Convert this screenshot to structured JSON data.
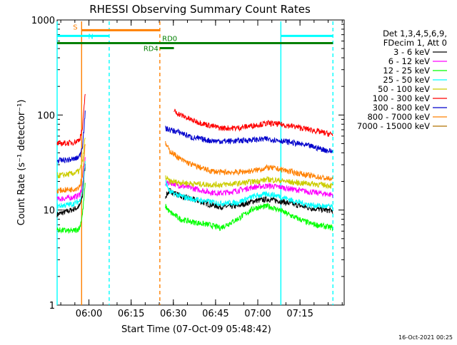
{
  "chart_data": {
    "type": "line",
    "title": "RHESSI Observing Summary Count Rates",
    "xlabel": "Start Time (07-Oct-09 05:48:42)",
    "ylabel": "Count Rate (s⁻¹ detector⁻¹)",
    "ylog": true,
    "ylim": [
      1,
      1000
    ],
    "xlim_minutes_after_start": [
      0,
      102
    ],
    "x_ticks": [
      {
        "label": "06:00",
        "minutes": 11.3
      },
      {
        "label": "06:15",
        "minutes": 26.3
      },
      {
        "label": "06:30",
        "minutes": 41.3
      },
      {
        "label": "06:45",
        "minutes": 56.3
      },
      {
        "label": "07:00",
        "minutes": 71.3
      },
      {
        "label": "07:15",
        "minutes": 86.3
      }
    ],
    "y_ticks": [
      {
        "label": "1",
        "value": 1
      },
      {
        "label": "10",
        "value": 10
      },
      {
        "label": "100",
        "value": 100
      },
      {
        "label": "1000",
        "value": 1000
      }
    ],
    "legend_header": [
      "Det 1,3,4,5,6,9,",
      "FDecim 1, Att 0"
    ],
    "legend_position": "right",
    "series": [
      {
        "name": "3 - 6 keV",
        "color": "#000000",
        "points": [
          [
            0,
            9
          ],
          [
            5,
            10
          ],
          [
            7,
            10.5
          ],
          [
            8,
            11
          ],
          [
            9,
            14
          ],
          [
            9.5,
            22
          ],
          [
            10,
            30
          ]
        ],
        "points2": [
          [
            38.5,
            14
          ],
          [
            40,
            16
          ],
          [
            44,
            14
          ],
          [
            48,
            13
          ],
          [
            54,
            11.5
          ],
          [
            58,
            10.8
          ],
          [
            64,
            11
          ],
          [
            70,
            12.5
          ],
          [
            75,
            13
          ],
          [
            79,
            12.5
          ],
          [
            84,
            11.5
          ],
          [
            90,
            10.5
          ],
          [
            98,
            9.8
          ]
        ]
      },
      {
        "name": "6 - 12 keV",
        "color": "#ff00ff",
        "points": [
          [
            0,
            13
          ],
          [
            5,
            13.5
          ],
          [
            7,
            14
          ],
          [
            8,
            14.5
          ],
          [
            9,
            18
          ],
          [
            9.5,
            26
          ],
          [
            10,
            35
          ]
        ],
        "points2": [
          [
            38.5,
            19
          ],
          [
            40,
            19.5
          ],
          [
            44,
            18
          ],
          [
            48,
            17
          ],
          [
            54,
            15.5
          ],
          [
            58,
            15
          ],
          [
            64,
            16
          ],
          [
            70,
            17.5
          ],
          [
            75,
            18
          ],
          [
            79,
            17.5
          ],
          [
            84,
            16.5
          ],
          [
            90,
            15.5
          ],
          [
            98,
            14.5
          ]
        ]
      },
      {
        "name": "12 - 25 keV",
        "color": "#00ff00",
        "points": [
          [
            0,
            6.2
          ],
          [
            5,
            6
          ],
          [
            7,
            6.2
          ],
          [
            8,
            6.5
          ],
          [
            9,
            9
          ],
          [
            9.5,
            13
          ],
          [
            10,
            19
          ]
        ],
        "points2": [
          [
            38.5,
            11
          ],
          [
            40,
            9.5
          ],
          [
            44,
            8
          ],
          [
            48,
            7.5
          ],
          [
            54,
            7
          ],
          [
            58,
            6.5
          ],
          [
            64,
            8
          ],
          [
            70,
            10.5
          ],
          [
            75,
            11
          ],
          [
            79,
            10
          ],
          [
            84,
            8.5
          ],
          [
            90,
            7.2
          ],
          [
            98,
            6.5
          ]
        ]
      },
      {
        "name": "25 - 50 keV",
        "color": "#00ffff",
        "points": [
          [
            0,
            11
          ],
          [
            5,
            11.5
          ],
          [
            7,
            12
          ],
          [
            8,
            12.5
          ],
          [
            9,
            16
          ],
          [
            9.5,
            24
          ],
          [
            10,
            32
          ]
        ],
        "points2": [
          [
            38.5,
            20
          ],
          [
            40,
            15.5
          ],
          [
            44,
            14
          ],
          [
            48,
            13
          ],
          [
            54,
            12.3
          ],
          [
            58,
            11.8
          ],
          [
            64,
            12
          ],
          [
            70,
            14
          ],
          [
            75,
            14.8
          ],
          [
            79,
            14
          ],
          [
            84,
            12.5
          ],
          [
            90,
            11.3
          ],
          [
            98,
            10.8
          ]
        ]
      },
      {
        "name": "50 - 100 keV",
        "color": "#cccc00",
        "points": [
          [
            0,
            23
          ],
          [
            5,
            24
          ],
          [
            7,
            25
          ],
          [
            8,
            26
          ],
          [
            9,
            32
          ],
          [
            9.5,
            45
          ],
          [
            10,
            60
          ]
        ],
        "points2": [
          [
            38.5,
            22
          ],
          [
            40,
            20
          ],
          [
            44,
            19.5
          ],
          [
            48,
            19
          ],
          [
            54,
            18.5
          ],
          [
            58,
            18.5
          ],
          [
            64,
            19
          ],
          [
            70,
            20
          ],
          [
            75,
            21
          ],
          [
            79,
            20.5
          ],
          [
            84,
            19.5
          ],
          [
            90,
            19
          ],
          [
            98,
            18
          ]
        ]
      },
      {
        "name": "100 - 300 keV",
        "color": "#ff0000",
        "points": [
          [
            0,
            50
          ],
          [
            5,
            51
          ],
          [
            7,
            53
          ],
          [
            8,
            56
          ],
          [
            9,
            72
          ],
          [
            9.5,
            110
          ],
          [
            10,
            180
          ]
        ],
        "points2": [
          [
            41.5,
            110
          ],
          [
            44,
            100
          ],
          [
            48,
            88
          ],
          [
            54,
            78
          ],
          [
            58,
            73
          ],
          [
            64,
            73
          ],
          [
            70,
            78
          ],
          [
            75,
            82
          ],
          [
            79,
            80
          ],
          [
            84,
            76
          ],
          [
            90,
            70
          ],
          [
            98,
            62
          ]
        ]
      },
      {
        "name": "300 - 800 keV",
        "color": "#0000cc",
        "points": [
          [
            0,
            33
          ],
          [
            5,
            34
          ],
          [
            7,
            35
          ],
          [
            8,
            37
          ],
          [
            9,
            48
          ],
          [
            9.5,
            70
          ],
          [
            10,
            110
          ]
        ],
        "points2": [
          [
            38.5,
            72
          ],
          [
            40,
            70
          ],
          [
            44,
            65
          ],
          [
            48,
            58
          ],
          [
            54,
            54
          ],
          [
            58,
            53
          ],
          [
            64,
            53.5
          ],
          [
            70,
            55
          ],
          [
            75,
            56
          ],
          [
            79,
            54
          ],
          [
            84,
            51
          ],
          [
            90,
            47
          ],
          [
            98,
            41
          ]
        ]
      },
      {
        "name": "800 - 7000 keV",
        "color": "#ff8000",
        "points": [
          [
            0,
            16
          ],
          [
            5,
            16.5
          ],
          [
            7,
            17
          ],
          [
            8,
            18
          ],
          [
            9,
            23
          ],
          [
            9.5,
            34
          ],
          [
            10,
            50
          ]
        ],
        "points2": [
          [
            38.5,
            50
          ],
          [
            40,
            42
          ],
          [
            44,
            34
          ],
          [
            48,
            30
          ],
          [
            54,
            26
          ],
          [
            58,
            25
          ],
          [
            64,
            25
          ],
          [
            70,
            26
          ],
          [
            75,
            28
          ],
          [
            79,
            27
          ],
          [
            84,
            25
          ],
          [
            90,
            23
          ],
          [
            98,
            21
          ]
        ]
      },
      {
        "name": "7000 - 15000 keV",
        "color": "#b07000",
        "points": [],
        "points2": []
      }
    ],
    "state_bars": [
      {
        "label": "S",
        "color": "#ff8000",
        "x_start": 8.7,
        "x_end": 36.5,
        "y": 780
      },
      {
        "label": "N",
        "color": "#00ffff",
        "x_start": 0,
        "x_end": 18.5,
        "y": 680
      },
      {
        "label": "",
        "color": "#00ffff",
        "x_start": 79.5,
        "x_end": 98,
        "y": 680
      },
      {
        "label": "RD0",
        "color": "#008000",
        "x_start": 0,
        "x_end": 98,
        "y": 570
      },
      {
        "label": "RD4",
        "color": "#008000",
        "x_start": 36.5,
        "x_end": 41.5,
        "y": 505
      }
    ],
    "vertical_lines": [
      {
        "x": 0,
        "color": "#00ffff",
        "style": "solid"
      },
      {
        "x": 18.5,
        "color": "#00ffff",
        "style": "dashed"
      },
      {
        "x": 36.5,
        "color": "#ff8000",
        "style": "dashed"
      },
      {
        "x": 8.7,
        "color": "#ff8000",
        "style": "solid"
      },
      {
        "x": 79.5,
        "color": "#00ffff",
        "style": "solid"
      },
      {
        "x": 98,
        "color": "#00ffff",
        "style": "dashed"
      }
    ],
    "footer_timestamp": "16-Oct-2021 00:25"
  }
}
